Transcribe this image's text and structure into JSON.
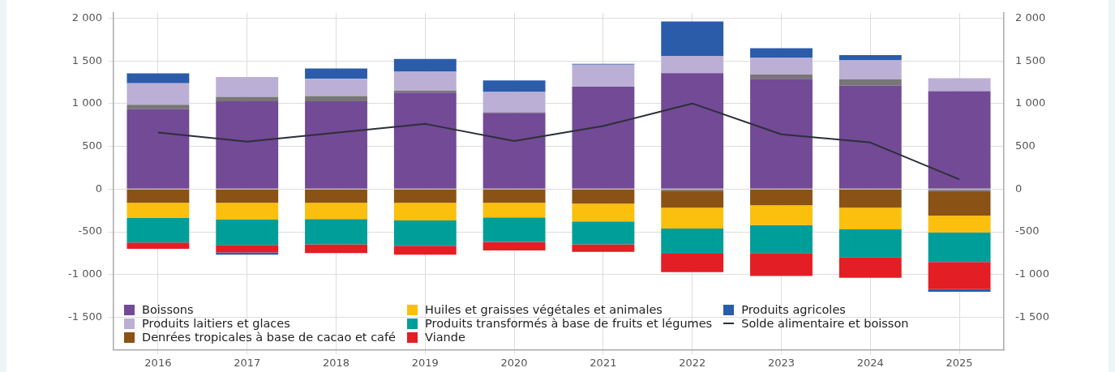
{
  "chart_data": {
    "type": "bar",
    "stacked": true,
    "categories": [
      "2016",
      "2017",
      "2018",
      "2019",
      "2020",
      "2021",
      "2022",
      "2023",
      "2024",
      "2025"
    ],
    "series": [
      {
        "name": "Boissons",
        "color": "#724a96",
        "values": [
          936,
          1028,
          1028,
          1130,
          894,
          1200,
          1359,
          1292,
          1211,
          1148
        ]
      },
      {
        "color": "#777777",
        "values": [
          53,
          53,
          63,
          25,
          7,
          null,
          -18,
          49,
          74,
          -21
        ]
      },
      {
        "name": "Produits laitiers et glaces",
        "color": "#bbafd6",
        "values": [
          250,
          232,
          201,
          221,
          236,
          257,
          200,
          201,
          222,
          151
        ]
      },
      {
        "name": "Denrées tropicales à base de cacao et café",
        "color": "#8a5215",
        "values": [
          -161,
          -161,
          -161,
          -161,
          -161,
          -171,
          -200,
          -189,
          -218,
          -290
        ]
      },
      {
        "name": "Huiles et graisses végétales et animales",
        "color": "#fbbf0e",
        "values": [
          -178,
          -196,
          -189,
          -207,
          -171,
          -207,
          -243,
          -232,
          -253,
          -196
        ]
      },
      {
        "name": "Produits transformés à base de fruits et légumes",
        "color": "#009e99",
        "values": [
          -286,
          -296,
          -296,
          -296,
          -286,
          -268,
          -296,
          -329,
          -325,
          -346
        ]
      },
      {
        "name": "Viande",
        "color": "#e31e24",
        "values": [
          -75,
          -90,
          -104,
          -104,
          -100,
          -89,
          -214,
          -267,
          -243,
          -318
        ]
      },
      {
        "name": "Produits agricoles",
        "color": "#2a5caa",
        "values": [
          116,
          -25,
          120,
          148,
          137,
          11,
          405,
          109,
          63,
          -32
        ]
      },
      {
        "name": "Solde alimentaire et boisson",
        "type": "line",
        "color": "#2b3038",
        "values": [
          662,
          556,
          660,
          764,
          563,
          739,
          1003,
          641,
          546,
          113
        ]
      }
    ],
    "ylim": [
      -1880,
      2065
    ],
    "yticks": [
      {
        "value": -1500,
        "label": "-1 500"
      },
      {
        "value": -1000,
        "label": "-1 000"
      },
      -500,
      0,
      500,
      {
        "value": 1000,
        "label": "1 000"
      },
      {
        "value": 1500,
        "label": "1 500"
      },
      {
        "value": 2000,
        "label": "2 000"
      }
    ],
    "y2lim": [
      -1880,
      2065
    ],
    "y2ticks": [
      {
        "value": -1500,
        "label": "-1 500"
      },
      {
        "value": -1000,
        "label": "-1 000"
      },
      -500,
      0,
      500,
      {
        "value": 1000,
        "label": "1 000"
      },
      {
        "value": 1500,
        "label": "1 500"
      },
      {
        "value": 2000,
        "label": "2 000"
      }
    ],
    "grid": true,
    "legend": "bottom left",
    "marker": "none",
    "line_style": "solid"
  }
}
